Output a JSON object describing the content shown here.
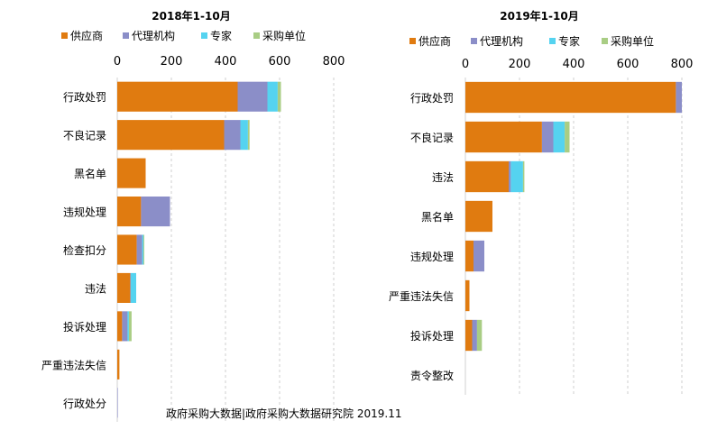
{
  "source_caption": "政府采购大数据|政府采购大数据研究院 2019.11",
  "series_colors": {
    "供应商": "#e07b10",
    "代理机构": "#8b8ec8",
    "专家": "#55d3f0",
    "采购单位": "#a9cd84"
  },
  "chart_data": [
    {
      "type": "bar",
      "orientation": "horizontal",
      "stacked": true,
      "title": "2018年1-10月",
      "legend": [
        "供应商",
        "代理机构",
        "专家",
        "采购单位"
      ],
      "legend_position": "top",
      "categories": [
        "行政处罚",
        "不良记录",
        "黑名单",
        "违规处理",
        "检查扣分",
        "违法",
        "投诉处理",
        "严重违法失信",
        "行政处分"
      ],
      "series": [
        {
          "name": "供应商",
          "values": [
            445,
            395,
            105,
            88,
            72,
            48,
            18,
            8,
            0
          ]
        },
        {
          "name": "代理机构",
          "values": [
            110,
            60,
            0,
            107,
            20,
            2,
            20,
            0,
            2
          ]
        },
        {
          "name": "专家",
          "values": [
            38,
            28,
            0,
            0,
            5,
            20,
            5,
            0,
            0
          ]
        },
        {
          "name": "采购单位",
          "values": [
            12,
            6,
            0,
            0,
            3,
            0,
            10,
            0,
            0
          ]
        }
      ],
      "xlim": [
        0,
        800
      ],
      "xticks": [
        0,
        200,
        400,
        600,
        800
      ],
      "grid": true
    },
    {
      "type": "bar",
      "orientation": "horizontal",
      "stacked": true,
      "title": "2019年1-10月",
      "legend": [
        "供应商",
        "代理机构",
        "专家",
        "采购单位"
      ],
      "legend_position": "top",
      "categories": [
        "行政处罚",
        "不良记录",
        "违法",
        "黑名单",
        "违规处理",
        "严重违法失信",
        "投诉处理",
        "责令整改"
      ],
      "series": [
        {
          "name": "供应商",
          "values": [
            778,
            283,
            160,
            100,
            30,
            15,
            25,
            0
          ]
        },
        {
          "name": "代理机构",
          "values": [
            22,
            42,
            8,
            0,
            40,
            0,
            18,
            0
          ]
        },
        {
          "name": "专家",
          "values": [
            0,
            42,
            45,
            0,
            0,
            0,
            0,
            0
          ]
        },
        {
          "name": "采购单位",
          "values": [
            0,
            18,
            5,
            0,
            0,
            0,
            18,
            0
          ]
        }
      ],
      "xlim": [
        0,
        800
      ],
      "xticks": [
        0,
        200,
        400,
        600,
        800
      ],
      "grid": true
    }
  ]
}
